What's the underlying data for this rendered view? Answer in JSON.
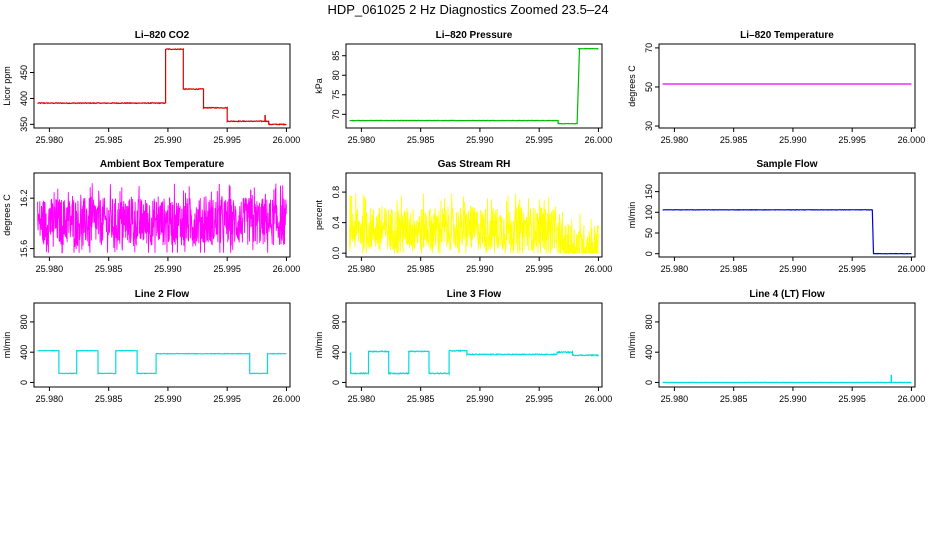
{
  "title": "HDP_061025  2 Hz Diagnostics Zoomed 23.5–24",
  "chart_data": [
    {
      "type": "line",
      "title": "Li–820 CO2",
      "ylabel": "Licor ppm",
      "color": "#dd0000",
      "xticks": [
        "25.980",
        "25.985",
        "25.990",
        "25.995",
        "26.000"
      ],
      "xlim": [
        25.9787,
        26.0003
      ],
      "yticks": [
        {
          "v": 350,
          "l": "350"
        },
        {
          "v": 400,
          "l": "400"
        },
        {
          "v": 450,
          "l": "450"
        }
      ],
      "ylim": [
        343,
        505
      ],
      "segments": [
        [
          25.979,
          25.9898,
          391
        ],
        [
          25.9898,
          25.9913,
          495
        ],
        [
          25.9913,
          25.993,
          418
        ],
        [
          25.993,
          25.995,
          382
        ],
        [
          25.995,
          25.9985,
          356
        ],
        [
          25.9985,
          26.0,
          350
        ]
      ],
      "noise": 1.5,
      "spikes": [
        [
          25.9982,
          368
        ]
      ]
    },
    {
      "type": "line",
      "title": "Li–820 Pressure",
      "ylabel": "kPa",
      "color": "#00bb00",
      "xticks": [
        "25.980",
        "25.985",
        "25.990",
        "25.995",
        "26.000"
      ],
      "xlim": [
        25.9787,
        26.0003
      ],
      "yticks": [
        {
          "v": 70,
          "l": "70"
        },
        {
          "v": 75,
          "l": "75"
        },
        {
          "v": 80,
          "l": "80"
        },
        {
          "v": 85,
          "l": "85"
        }
      ],
      "ylim": [
        66.5,
        88
      ],
      "segments": [
        [
          25.979,
          25.9966,
          68.4
        ],
        [
          25.9966,
          25.9982,
          67.6
        ],
        [
          25.9983,
          26.0,
          86.8
        ]
      ],
      "noise": 0.1,
      "ramp": [
        25.9982,
        67.6,
        25.9984,
        86.8
      ]
    },
    {
      "type": "line",
      "title": "Li–820 Temperature",
      "ylabel": "degrees C",
      "color": "#ee00ee",
      "xticks": [
        "25.980",
        "25.985",
        "25.990",
        "25.995",
        "26.000"
      ],
      "xlim": [
        25.9787,
        26.0003
      ],
      "yticks": [
        {
          "v": 30,
          "l": "30"
        },
        {
          "v": 50,
          "l": "50"
        },
        {
          "v": 70,
          "l": "70"
        }
      ],
      "ylim": [
        29,
        72
      ],
      "segments": [
        [
          25.979,
          26.0,
          51.5
        ]
      ],
      "noise": 0
    },
    {
      "type": "line",
      "title": "Ambient Box Temperature",
      "ylabel": "degrees C",
      "color": "#ff00ff",
      "xticks": [
        "25.980",
        "25.985",
        "25.990",
        "25.995",
        "26.000"
      ],
      "xlim": [
        25.9787,
        26.0003
      ],
      "yticks": [
        {
          "v": 15.6,
          "l": "15.6"
        },
        {
          "v": 16.2,
          "l": "16.2"
        }
      ],
      "ylim": [
        15.5,
        16.5
      ],
      "segments": [
        [
          25.979,
          26.0,
          15.92
        ]
      ],
      "noise": 0.18,
      "dense": true,
      "clip": [
        15.55,
        16.45
      ]
    },
    {
      "type": "line",
      "title": "Gas Stream RH",
      "ylabel": "percent",
      "color": "#ffff00",
      "xticks": [
        "25.980",
        "25.985",
        "25.990",
        "25.995",
        "26.000"
      ],
      "xlim": [
        25.9787,
        26.0003
      ],
      "yticks": [
        {
          "v": 0.0,
          "l": "0.0"
        },
        {
          "v": 0.4,
          "l": "0.4"
        },
        {
          "v": 0.8,
          "l": "0.8"
        }
      ],
      "ylim": [
        -0.05,
        1.05
      ],
      "segments": [
        [
          25.979,
          25.9965,
          0.32
        ],
        [
          25.9965,
          26.0,
          0.1
        ]
      ],
      "noise": 0.18,
      "dense": true,
      "clip": [
        0.0,
        1.0
      ]
    },
    {
      "type": "line",
      "title": "Sample Flow",
      "ylabel": "ml/min",
      "color": "#0000cc",
      "xticks": [
        "25.980",
        "25.985",
        "25.990",
        "25.995",
        "26.000"
      ],
      "xlim": [
        25.9787,
        26.0003
      ],
      "yticks": [
        {
          "v": 0,
          "l": "0"
        },
        {
          "v": 50,
          "l": "50"
        },
        {
          "v": 100,
          "l": "100"
        },
        {
          "v": 150,
          "l": "150"
        }
      ],
      "ylim": [
        -8,
        195
      ],
      "segments": [
        [
          25.979,
          25.9967,
          106
        ],
        [
          25.9968,
          26.0,
          0
        ]
      ],
      "noise": 0.8
    },
    {
      "type": "line",
      "title": "Line 2 Flow",
      "ylabel": "ml/min",
      "color": "#00dddd",
      "xticks": [
        "25.980",
        "25.985",
        "25.990",
        "25.995",
        "26.000"
      ],
      "xlim": [
        25.9787,
        26.0003
      ],
      "yticks": [
        {
          "v": 0,
          "l": "0"
        },
        {
          "v": 400,
          "l": "400"
        },
        {
          "v": 800,
          "l": "800"
        }
      ],
      "ylim": [
        -60,
        1050
      ],
      "segments": [
        [
          25.979,
          25.9808,
          420
        ],
        [
          25.9808,
          25.9823,
          120
        ],
        [
          25.9823,
          25.9841,
          420
        ],
        [
          25.9841,
          25.9856,
          120
        ],
        [
          25.9856,
          25.9874,
          420
        ],
        [
          25.9874,
          25.989,
          120
        ],
        [
          25.989,
          25.9969,
          380
        ],
        [
          25.9969,
          25.9984,
          120
        ],
        [
          25.9984,
          26.0,
          380
        ]
      ],
      "noise": 6
    },
    {
      "type": "line",
      "title": "Line 3 Flow",
      "ylabel": "ml/min",
      "color": "#00dddd",
      "xticks": [
        "25.980",
        "25.985",
        "25.990",
        "25.995",
        "26.000"
      ],
      "xlim": [
        25.9787,
        26.0003
      ],
      "yticks": [
        {
          "v": 0,
          "l": "0"
        },
        {
          "v": 400,
          "l": "400"
        },
        {
          "v": 800,
          "l": "800"
        }
      ],
      "ylim": [
        -60,
        1050
      ],
      "segments": [
        [
          25.979,
          25.9791,
          380
        ],
        [
          25.9791,
          25.9806,
          120
        ],
        [
          25.9806,
          25.9823,
          410
        ],
        [
          25.9823,
          25.984,
          120
        ],
        [
          25.984,
          25.9857,
          410
        ],
        [
          25.9857,
          25.9874,
          120
        ],
        [
          25.9874,
          25.9889,
          420
        ],
        [
          25.9889,
          25.9965,
          370
        ],
        [
          25.9965,
          25.9978,
          400
        ],
        [
          25.9978,
          26.0,
          360
        ]
      ],
      "noise": 12
    },
    {
      "type": "line",
      "title": "Line 4 (LT) Flow",
      "ylabel": "ml/min",
      "color": "#00dddd",
      "xticks": [
        "25.980",
        "25.985",
        "25.990",
        "25.995",
        "26.000"
      ],
      "xlim": [
        25.9787,
        26.0003
      ],
      "yticks": [
        {
          "v": 0,
          "l": "0"
        },
        {
          "v": 400,
          "l": "400"
        },
        {
          "v": 800,
          "l": "800"
        }
      ],
      "ylim": [
        -60,
        1050
      ],
      "segments": [
        [
          25.979,
          26.0,
          0
        ]
      ],
      "noise": 2,
      "spikes": [
        [
          25.9983,
          100
        ]
      ]
    }
  ]
}
